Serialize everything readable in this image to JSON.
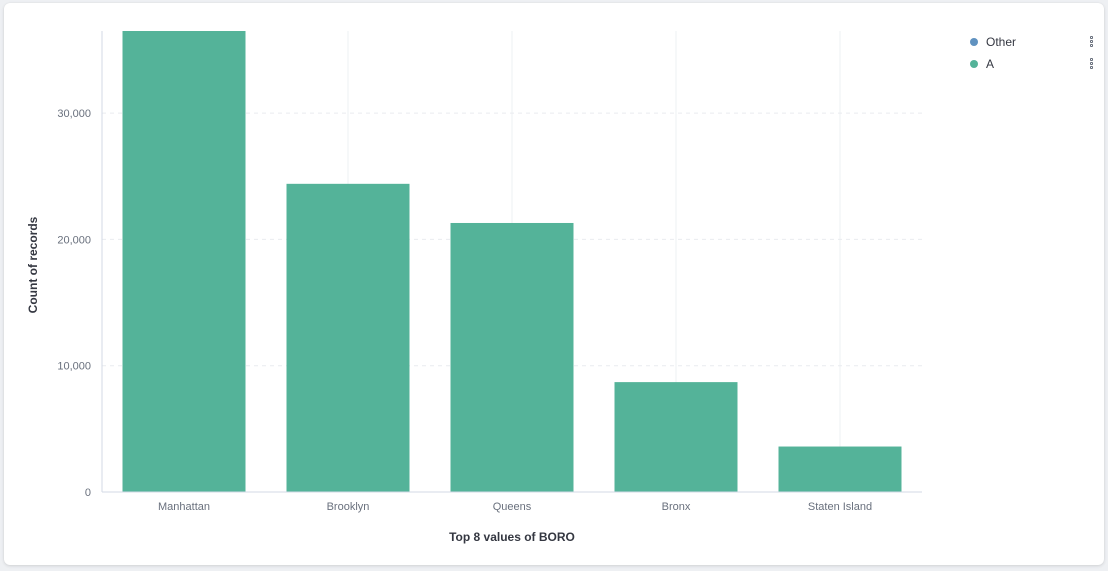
{
  "chart_data": {
    "type": "bar",
    "xlabel": "Top 8 values of BORO",
    "ylabel": "Count of records",
    "categories": [
      "Manhattan",
      "Brooklyn",
      "Queens",
      "Bronx",
      "Staten Island"
    ],
    "series": [
      {
        "name": "A",
        "values": [
          36500,
          24400,
          21300,
          8700,
          3600
        ],
        "color": "#54b399"
      }
    ],
    "yticks": [
      0,
      10000,
      20000,
      30000
    ],
    "ytick_labels": [
      "0",
      "10,000",
      "20,000",
      "30,000"
    ],
    "ylim": [
      0,
      36500
    ],
    "grid": true,
    "legend_placement": "top-right"
  },
  "legend": {
    "items": [
      {
        "label": "Other",
        "color": "#6092c0"
      },
      {
        "label": "A",
        "color": "#54b399"
      }
    ]
  }
}
